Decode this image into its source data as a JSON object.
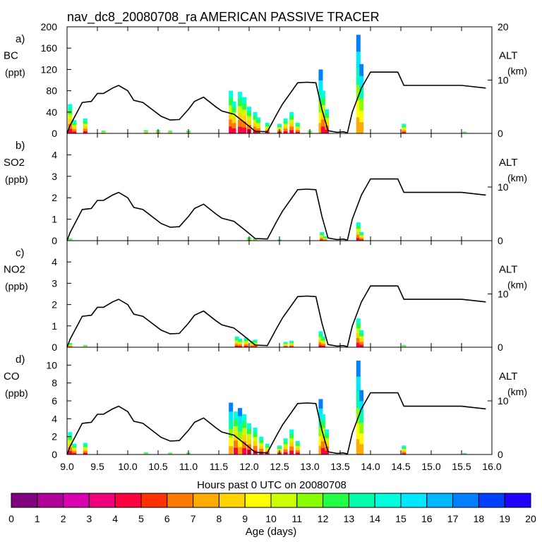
{
  "title": "nav_dc8_20080708_ra AMERICAN PASSIVE TRACER",
  "x_axis": {
    "label": "Hours past 0 UTC on 20080708",
    "range": [
      9.0,
      16.0
    ],
    "ticks": [
      "9.0",
      "9.5",
      "10.0",
      "10.5",
      "11.0",
      "11.5",
      "12.0",
      "12.5",
      "13.0",
      "13.5",
      "14.0",
      "14.5",
      "15.0",
      "15.5",
      "16.0"
    ]
  },
  "colorbar": {
    "label": "Age (days)",
    "ticks": [
      "0",
      "1",
      "2",
      "3",
      "4",
      "5",
      "6",
      "7",
      "8",
      "9",
      "10",
      "11",
      "12",
      "13",
      "14",
      "15",
      "16",
      "17",
      "18",
      "19",
      "20"
    ],
    "colors": [
      "#800080",
      "#b0009a",
      "#d800b0",
      "#f0007a",
      "#ff0040",
      "#ff3000",
      "#ff7a00",
      "#ffaa00",
      "#ffd400",
      "#ffff00",
      "#ccff00",
      "#88ff00",
      "#22ff44",
      "#00ffaa",
      "#00ffdd",
      "#00e8ff",
      "#00b8ff",
      "#0080ff",
      "#0040ff",
      "#2000ff"
    ]
  },
  "alt_axis": {
    "label": "ALT",
    "unit": "(km)"
  },
  "chart_data": [
    {
      "type": "area",
      "panel": "a)",
      "species": "BC",
      "unit": "(ppt)",
      "ylim": [
        0,
        200
      ],
      "yticks": [
        "0",
        "40",
        "80",
        "120",
        "160",
        "200"
      ],
      "alt_ticks": [
        "0",
        "10",
        "20"
      ],
      "alt_ticks_values": [
        0,
        10,
        20
      ],
      "spikes": [
        [
          9.05,
          55
        ],
        [
          9.12,
          25
        ],
        [
          9.3,
          28
        ],
        [
          9.6,
          5
        ],
        [
          10.3,
          6
        ],
        [
          10.5,
          6
        ],
        [
          10.7,
          5
        ],
        [
          11.0,
          5
        ],
        [
          11.7,
          80
        ],
        [
          11.75,
          60
        ],
        [
          11.85,
          78
        ],
        [
          11.92,
          68
        ],
        [
          12.0,
          50
        ],
        [
          12.1,
          40
        ],
        [
          12.15,
          30
        ],
        [
          12.3,
          20
        ],
        [
          12.5,
          18
        ],
        [
          12.6,
          28
        ],
        [
          12.7,
          40
        ],
        [
          12.8,
          20
        ],
        [
          13.0,
          5
        ],
        [
          13.18,
          120
        ],
        [
          13.22,
          80
        ],
        [
          13.28,
          45
        ],
        [
          13.8,
          185
        ],
        [
          13.85,
          130
        ],
        [
          14.55,
          18
        ],
        [
          15.55,
          3
        ]
      ]
    },
    {
      "type": "area",
      "panel": "b)",
      "species": "SO2",
      "unit": "(ppb)",
      "ylim": [
        0,
        5
      ],
      "yticks": [
        "0",
        "1",
        "2",
        "3",
        "4"
      ],
      "alt_ticks": [
        "0",
        "10"
      ],
      "alt_ticks_values": [
        0,
        10
      ],
      "spikes": [
        [
          9.05,
          0.1
        ],
        [
          12.0,
          0.15
        ],
        [
          12.1,
          0.1
        ],
        [
          12.5,
          0.05
        ],
        [
          13.2,
          0.4
        ],
        [
          13.25,
          0.2
        ],
        [
          13.8,
          0.85
        ],
        [
          13.85,
          0.4
        ]
      ]
    },
    {
      "type": "area",
      "panel": "c)",
      "species": "NO2",
      "unit": "(ppb)",
      "ylim": [
        0,
        5
      ],
      "yticks": [
        "0",
        "1",
        "2",
        "3",
        "4"
      ],
      "alt_ticks": [
        "0",
        "10"
      ],
      "alt_ticks_values": [
        0,
        10
      ],
      "spikes": [
        [
          9.05,
          0.2
        ],
        [
          9.3,
          0.1
        ],
        [
          11.8,
          0.5
        ],
        [
          11.85,
          0.4
        ],
        [
          11.95,
          0.45
        ],
        [
          12.05,
          0.3
        ],
        [
          12.1,
          0.35
        ],
        [
          12.6,
          0.25
        ],
        [
          12.7,
          0.3
        ],
        [
          13.18,
          0.75
        ],
        [
          13.22,
          0.5
        ],
        [
          13.8,
          1.35
        ],
        [
          13.85,
          0.8
        ],
        [
          14.55,
          0.1
        ]
      ]
    },
    {
      "type": "area",
      "panel": "d)",
      "species": "CO",
      "unit": "(ppb)",
      "ylim": [
        0,
        12
      ],
      "yticks": [
        "0",
        "2",
        "4",
        "6",
        "8",
        "10"
      ],
      "alt_ticks": [
        "0",
        "10"
      ],
      "alt_ticks_values": [
        0,
        10
      ],
      "spikes": [
        [
          9.05,
          2.5
        ],
        [
          9.12,
          1.2
        ],
        [
          9.3,
          1.3
        ],
        [
          10.3,
          0.25
        ],
        [
          10.7,
          0.2
        ],
        [
          11.0,
          0.2
        ],
        [
          11.7,
          5.8
        ],
        [
          11.78,
          4.8
        ],
        [
          11.85,
          5.2
        ],
        [
          11.92,
          4.5
        ],
        [
          12.0,
          3.5
        ],
        [
          12.1,
          3.0
        ],
        [
          12.2,
          2.0
        ],
        [
          12.3,
          1.2
        ],
        [
          12.5,
          1.0
        ],
        [
          12.6,
          1.8
        ],
        [
          12.7,
          2.8
        ],
        [
          12.8,
          1.5
        ],
        [
          13.18,
          6.2
        ],
        [
          13.22,
          4.5
        ],
        [
          13.28,
          2.8
        ],
        [
          13.8,
          10.5
        ],
        [
          13.85,
          7.2
        ],
        [
          14.55,
          1.0
        ],
        [
          15.55,
          0.15
        ]
      ]
    }
  ],
  "altitude_track": {
    "alt_max": 20,
    "t": [
      9.0,
      9.05,
      9.25,
      9.4,
      9.5,
      9.6,
      9.75,
      9.85,
      10.0,
      10.1,
      10.25,
      10.4,
      10.55,
      10.7,
      10.85,
      11.0,
      11.1,
      11.25,
      11.45,
      11.55,
      11.75,
      11.95,
      12.1,
      12.3,
      12.45,
      12.55,
      12.8,
      12.95,
      13.1,
      13.2,
      13.3,
      13.45,
      13.55,
      13.62,
      13.7,
      13.85,
      14.0,
      14.45,
      14.55,
      15.5,
      15.9
    ],
    "alt": [
      0,
      1.5,
      5.8,
      6.0,
      7.5,
      7.5,
      8.5,
      9.0,
      8.0,
      6.2,
      5.8,
      4.5,
      3.2,
      2.5,
      2.6,
      4.5,
      6.0,
      6.8,
      5.0,
      4.2,
      3.6,
      1.8,
      0.4,
      0.3,
      3.5,
      5.5,
      9.5,
      9.6,
      9.5,
      4.5,
      0.5,
      0.2,
      0.3,
      0.1,
      4.0,
      8.5,
      11.5,
      11.5,
      9.0,
      9.0,
      8.5
    ]
  }
}
